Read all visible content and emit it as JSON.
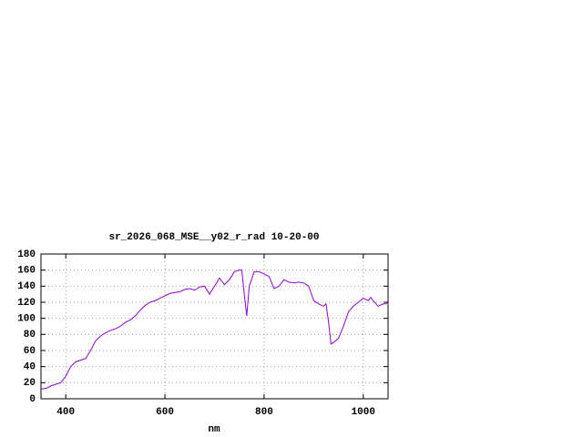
{
  "chart_data": {
    "type": "line",
    "title": "sr_2026_068_MSE__y02_r_rad 10-20-00",
    "x_label": "nm",
    "x": [
      350,
      360,
      370,
      380,
      390,
      400,
      410,
      420,
      430,
      440,
      450,
      460,
      470,
      480,
      490,
      500,
      510,
      520,
      530,
      540,
      550,
      560,
      570,
      580,
      590,
      600,
      610,
      620,
      630,
      640,
      650,
      660,
      670,
      680,
      690,
      700,
      710,
      720,
      730,
      740,
      750,
      755,
      760,
      765,
      770,
      780,
      790,
      800,
      810,
      820,
      830,
      840,
      850,
      860,
      870,
      880,
      890,
      900,
      910,
      920,
      925,
      930,
      935,
      940,
      950,
      960,
      970,
      980,
      990,
      1000,
      1010,
      1015,
      1020,
      1030,
      1040,
      1045,
      1050
    ],
    "values": [
      12,
      13,
      16,
      18,
      20,
      28,
      40,
      46,
      48,
      50,
      60,
      72,
      78,
      82,
      85,
      87,
      90,
      95,
      98,
      103,
      110,
      116,
      120,
      122,
      125,
      128,
      131,
      132,
      133,
      136,
      137,
      135,
      139,
      140,
      130,
      140,
      150,
      142,
      148,
      158,
      160,
      160,
      130,
      103,
      140,
      158,
      158,
      155,
      152,
      137,
      140,
      148,
      145,
      144,
      145,
      144,
      140,
      122,
      118,
      115,
      118,
      95,
      68,
      70,
      75,
      90,
      108,
      115,
      120,
      125,
      122,
      126,
      122,
      115,
      118,
      118,
      120
    ],
    "color": "#9400d3",
    "xlim": [
      350,
      1050
    ],
    "xticks": [
      400,
      600,
      800,
      1000
    ],
    "ylim": [
      0,
      180
    ],
    "yticks": [
      0,
      20,
      40,
      60,
      80,
      100,
      120,
      140,
      160,
      180
    ],
    "grid": true
  }
}
